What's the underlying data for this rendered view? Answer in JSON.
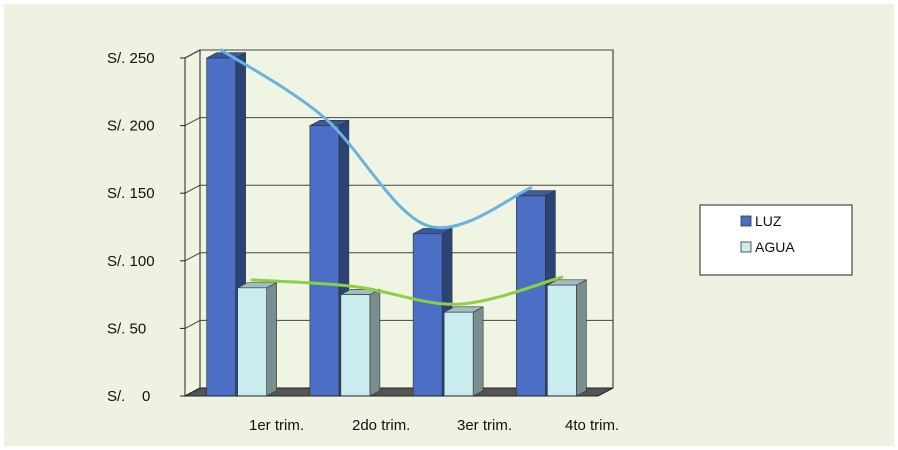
{
  "chart_data": {
    "type": "bar",
    "categories": [
      "1er trim.",
      "2do trim.",
      "3er trim.",
      "4to trim."
    ],
    "series": [
      {
        "name": "LUZ",
        "values": [
          250,
          200,
          120,
          148
        ],
        "color": "#4a6fc4"
      },
      {
        "name": "AGUA",
        "values": [
          80,
          75,
          62,
          82
        ],
        "color": "#c9ecee"
      }
    ],
    "trendlines": [
      {
        "series": "LUZ",
        "color": "#6ab2e0"
      },
      {
        "series": "AGUA",
        "color": "#8ed045"
      }
    ],
    "y_ticks": [
      0,
      50,
      100,
      150,
      200,
      250
    ],
    "y_tick_labels": [
      "S/.    0",
      "S/. 50",
      "S/. 100",
      "S/. 150",
      "S/. 200",
      "S/. 250"
    ],
    "ylim": [
      0,
      250
    ],
    "grid": true,
    "legend": {
      "placement": "right",
      "entries": [
        "LUZ",
        "AGUA"
      ]
    },
    "plot_background": "#eef3e1",
    "frame_color": "#ffffff"
  }
}
